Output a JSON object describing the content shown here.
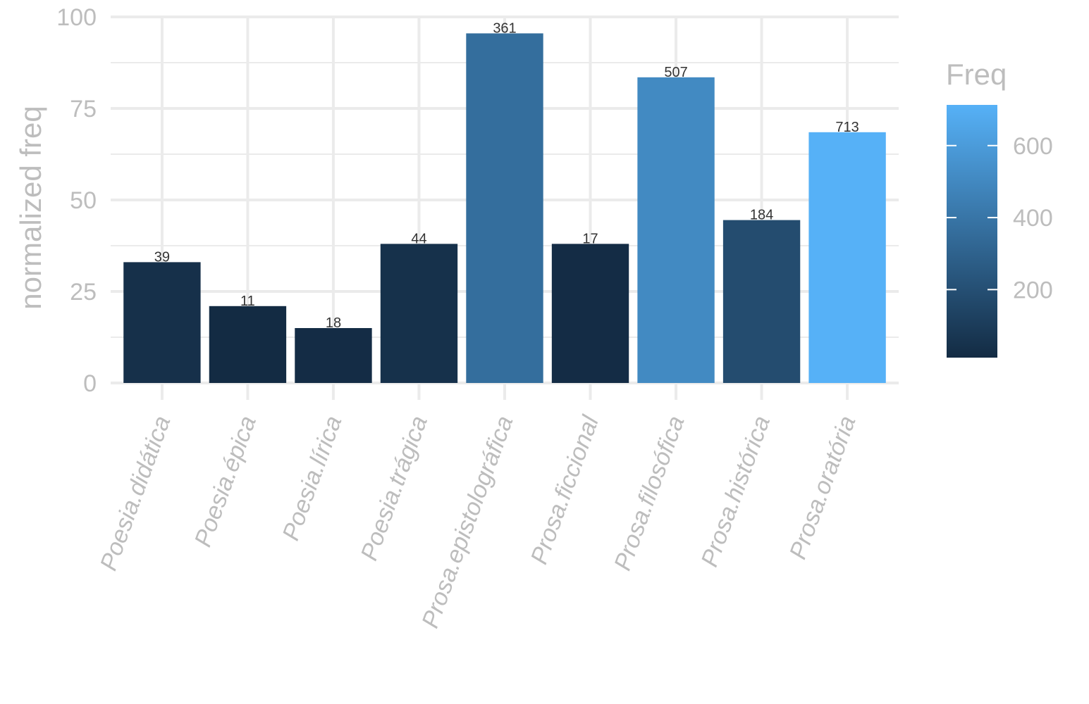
{
  "chart_data": {
    "type": "bar",
    "categories": [
      "Poesia.didática",
      "Poesia.épica",
      "Poesia.lírica",
      "Poesia.trágica",
      "Prosa.epistolográfica",
      "Prosa.ficcional",
      "Prosa.filosófica",
      "Prosa.histórica",
      "Prosa.oratória"
    ],
    "values": [
      33,
      21,
      15,
      38,
      95.5,
      38,
      83.5,
      44.5,
      68.5
    ],
    "freq": [
      39,
      11,
      18,
      44,
      361,
      17,
      507,
      184,
      713
    ],
    "ylabel": "normalized freq",
    "xlabel": "",
    "ylim": [
      0,
      100
    ],
    "yticks": [
      0,
      25,
      50,
      75,
      100
    ],
    "grid": true,
    "legend": {
      "title": "Freq",
      "position": "right",
      "type": "colorbar",
      "range": [
        11,
        713
      ],
      "ticks": [
        200,
        400,
        600
      ],
      "color_low": "#132b43",
      "color_high": "#56b1f7"
    }
  }
}
